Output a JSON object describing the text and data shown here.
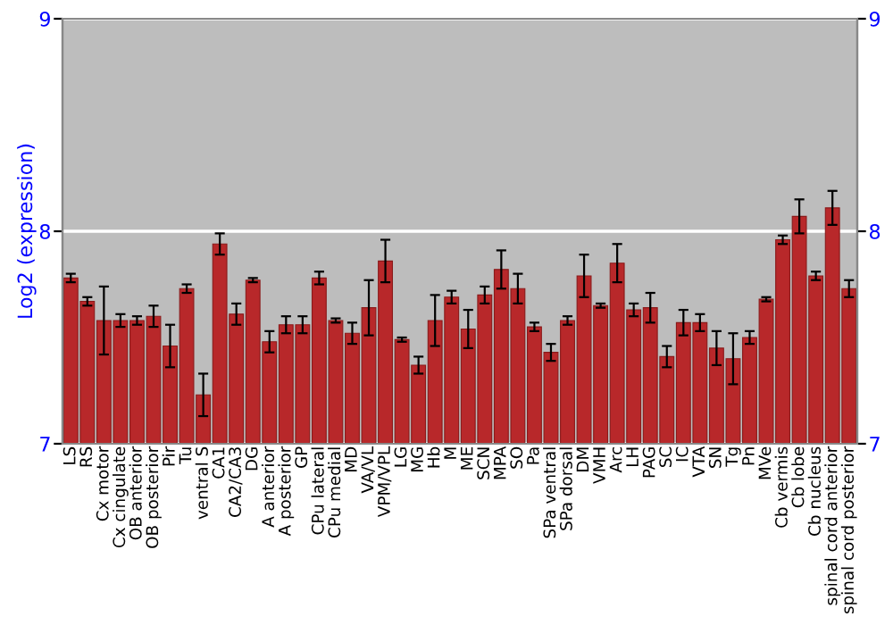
{
  "chart_data": {
    "type": "bar",
    "ylabel": "Log2 (expression)",
    "categories": [
      "LS",
      "RS",
      "Cx motor",
      "Cx cingulate",
      "OB anterior",
      "OB posterior",
      "Pir",
      "Tu",
      "ventral S",
      "CA1",
      "CA2/CA3",
      "DG",
      "A anterior",
      "A posterior",
      "GP",
      "CPu lateral",
      "CPu medial",
      "MD",
      "VA/VL",
      "VPM/VPL",
      "LG",
      "MG",
      "Hb",
      "M",
      "ME",
      "SCN",
      "MPA",
      "SO",
      "Pa",
      "SPa ventral",
      "SPa dorsal",
      "DM",
      "VMH",
      "Arc",
      "LH",
      "PAG",
      "SC",
      "IC",
      "VTA",
      "SN",
      "Tg",
      "Pn",
      "MVe",
      "Cb vermis",
      "Cb lobe",
      "Cb nucleus",
      "spinal cord anterior",
      "spinal cord posterior"
    ],
    "values": [
      7.78,
      7.67,
      7.58,
      7.58,
      7.58,
      7.6,
      7.46,
      7.73,
      7.23,
      7.94,
      7.61,
      7.77,
      7.48,
      7.56,
      7.56,
      7.78,
      7.58,
      7.52,
      7.64,
      7.86,
      7.49,
      7.37,
      7.58,
      7.69,
      7.54,
      7.7,
      7.82,
      7.73,
      7.55,
      7.43,
      7.58,
      7.79,
      7.65,
      7.85,
      7.63,
      7.64,
      7.41,
      7.57,
      7.57,
      7.45,
      7.4,
      7.5,
      7.68,
      7.96,
      8.07,
      7.79,
      8.11,
      7.73
    ],
    "errors": [
      0.02,
      0.02,
      0.16,
      0.03,
      0.02,
      0.05,
      0.1,
      0.02,
      0.1,
      0.05,
      0.05,
      0.01,
      0.05,
      0.04,
      0.04,
      0.03,
      0.01,
      0.05,
      0.13,
      0.1,
      0.01,
      0.04,
      0.12,
      0.03,
      0.09,
      0.04,
      0.09,
      0.07,
      0.02,
      0.04,
      0.02,
      0.1,
      0.01,
      0.09,
      0.03,
      0.07,
      0.05,
      0.06,
      0.04,
      0.08,
      0.12,
      0.03,
      0.01,
      0.02,
      0.08,
      0.02,
      0.08,
      0.04
    ],
    "color": "#b8282a",
    "ylim": [
      7,
      9
    ],
    "yticks": [
      7,
      8,
      9
    ],
    "y2lim": [
      7,
      9
    ],
    "y2ticks": [
      7,
      8,
      9
    ],
    "grid": "y"
  }
}
